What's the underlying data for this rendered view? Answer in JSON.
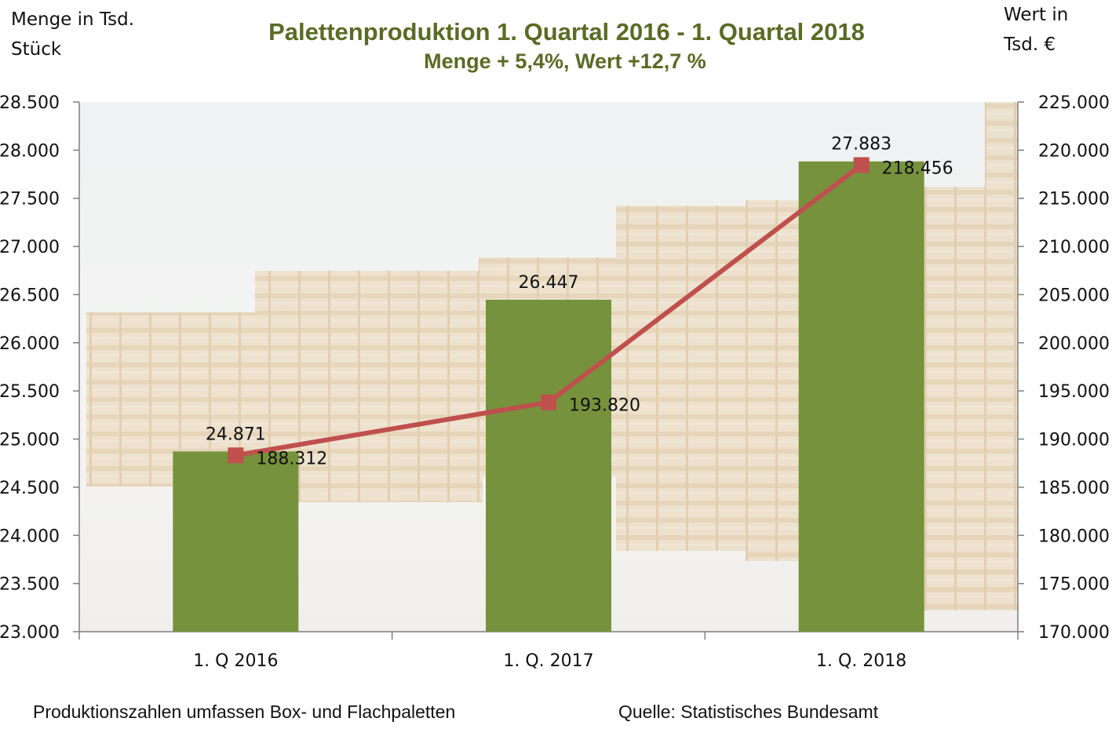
{
  "chart_data": {
    "type": "bar",
    "title": "Palettenproduktion 1. Quartal 2016 -  1. Quartal 2018",
    "subtitle": "Menge + 5,4%, Wert +12,7 %",
    "ylabel_left_line1": "Menge in Tsd.",
    "ylabel_left_line2": "Stück",
    "ylabel_right_line1": "Wert in",
    "ylabel_right_line2": "Tsd. €",
    "categories": [
      "1. Q 2016",
      "1. Q. 2017",
      "1. Q. 2018"
    ],
    "series": [
      {
        "type": "bar",
        "axis": "left",
        "values": [
          24871,
          26447,
          27883
        ],
        "labels": [
          "24.871",
          "26.447",
          "27.883"
        ]
      },
      {
        "type": "line",
        "axis": "right",
        "values": [
          188312,
          193820,
          218456
        ],
        "labels": [
          "188.312",
          "193.820",
          "218.456"
        ]
      }
    ],
    "ylim_left": [
      23000,
      28500
    ],
    "ylim_right": [
      170000,
      225000
    ],
    "yticks_left": [
      {
        "v": 23000,
        "t": "23.000"
      },
      {
        "v": 23500,
        "t": "23.500"
      },
      {
        "v": 24000,
        "t": "24.000"
      },
      {
        "v": 24500,
        "t": "24.500"
      },
      {
        "v": 25000,
        "t": "25.000"
      },
      {
        "v": 25500,
        "t": "25.500"
      },
      {
        "v": 26000,
        "t": "26.000"
      },
      {
        "v": 26500,
        "t": "26.500"
      },
      {
        "v": 27000,
        "t": "27.000"
      },
      {
        "v": 27500,
        "t": "27.500"
      },
      {
        "v": 28000,
        "t": "28.000"
      },
      {
        "v": 28500,
        "t": "28.500"
      }
    ],
    "yticks_right": [
      {
        "v": 170000,
        "t": "170.000"
      },
      {
        "v": 175000,
        "t": "175.000"
      },
      {
        "v": 180000,
        "t": "180.000"
      },
      {
        "v": 185000,
        "t": "185.000"
      },
      {
        "v": 190000,
        "t": "190.000"
      },
      {
        "v": 195000,
        "t": "195.000"
      },
      {
        "v": 200000,
        "t": "200.000"
      },
      {
        "v": 205000,
        "t": "205.000"
      },
      {
        "v": 210000,
        "t": "210.000"
      },
      {
        "v": 215000,
        "t": "215.000"
      },
      {
        "v": 220000,
        "t": "220.000"
      },
      {
        "v": 225000,
        "t": "225.000"
      }
    ],
    "grid": false,
    "legend": "none",
    "footnote_left": "Produktionszahlen umfassen Box- und Flachpaletten",
    "footnote_right": "Quelle: Statistisches Bundesamt",
    "colors": {
      "bar": "#76923c",
      "line": "#c0504d",
      "title": "#5a6b24",
      "background_pallets": "#e9d9bf",
      "background_sky": "#eef1ef"
    }
  }
}
